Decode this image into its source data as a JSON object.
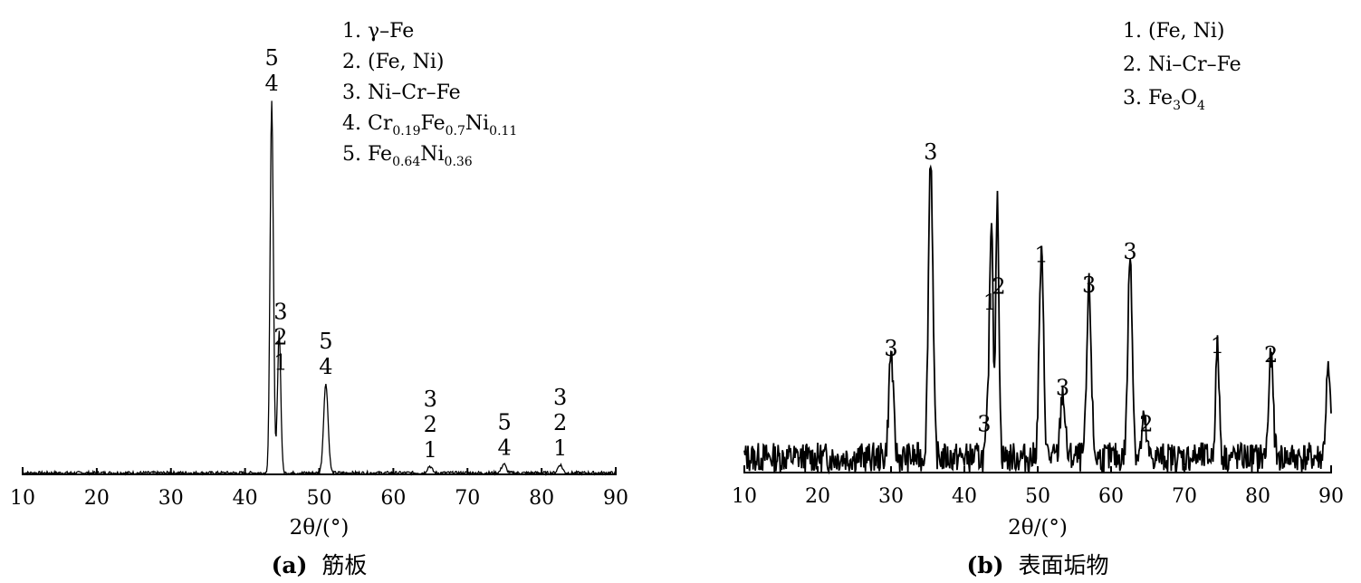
{
  "chart_data": [
    {
      "type": "line",
      "caption_prefix": "(a)",
      "caption_text": "筋板",
      "xlabel": "2θ/(°)",
      "xlim": [
        10,
        90
      ],
      "xticks": [
        10,
        20,
        30,
        40,
        50,
        60,
        70,
        80,
        90
      ],
      "ylim": [
        0,
        100
      ],
      "grid": false,
      "legend_position": "top-center",
      "legend": [
        {
          "num": "1. ",
          "parts": [
            {
              "t": "γ–Fe"
            }
          ]
        },
        {
          "num": "2. ",
          "parts": [
            {
              "t": "(Fe, Ni)"
            }
          ]
        },
        {
          "num": "3. ",
          "parts": [
            {
              "t": "Ni–Cr–Fe"
            }
          ]
        },
        {
          "num": "4. ",
          "parts": [
            {
              "t": "Cr"
            },
            {
              "t": "0.19",
              "sub": true
            },
            {
              "t": "Fe"
            },
            {
              "t": "0.7",
              "sub": true
            },
            {
              "t": "Ni"
            },
            {
              "t": "0.11",
              "sub": true
            }
          ]
        },
        {
          "num": "5. ",
          "parts": [
            {
              "t": "Fe"
            },
            {
              "t": "0.64",
              "sub": true
            },
            {
              "t": "Ni"
            },
            {
              "t": "0.36",
              "sub": true
            }
          ]
        }
      ],
      "peaks": [
        {
          "x": 43.6,
          "y": 100,
          "w": 0.22
        },
        {
          "x": 44.6,
          "y": 38,
          "w": 0.22
        },
        {
          "x": 50.9,
          "y": 24,
          "w": 0.3
        },
        {
          "x": 64.9,
          "y": 1.8,
          "w": 0.3
        },
        {
          "x": 74.9,
          "y": 2.4,
          "w": 0.3
        },
        {
          "x": 82.5,
          "y": 2.2,
          "w": 0.3
        }
      ],
      "baseline_noise": 0.8,
      "annotations": [
        {
          "x": 43.6,
          "labels": [
            "5",
            "4"
          ]
        },
        {
          "x": 44.8,
          "labels": [
            "3",
            "2",
            "1"
          ]
        },
        {
          "x": 50.9,
          "labels": [
            "5",
            "4"
          ]
        },
        {
          "x": 65.0,
          "labels": [
            "3",
            "2",
            "1"
          ]
        },
        {
          "x": 75.0,
          "labels": [
            "5",
            "4"
          ]
        },
        {
          "x": 82.5,
          "labels": [
            "3",
            "2",
            "1"
          ]
        }
      ]
    },
    {
      "type": "line",
      "caption_prefix": "(b)",
      "caption_text": "表面垢物",
      "xlabel": "2θ/(°)",
      "xlim": [
        10,
        90
      ],
      "xticks": [
        10,
        20,
        30,
        40,
        50,
        60,
        70,
        80,
        90
      ],
      "ylim": [
        0,
        100
      ],
      "grid": false,
      "legend_position": "top-right",
      "legend": [
        {
          "num": "1. ",
          "parts": [
            {
              "t": "(Fe, Ni)"
            }
          ]
        },
        {
          "num": "2. ",
          "parts": [
            {
              "t": "Ni–Cr–Fe"
            }
          ]
        },
        {
          "num": "3. ",
          "parts": [
            {
              "t": "Fe"
            },
            {
              "t": "3",
              "sub": true
            },
            {
              "t": "O"
            },
            {
              "t": "4",
              "sub": true
            }
          ]
        }
      ],
      "peaks": [
        {
          "x": 30.0,
          "y": 35,
          "w": 0.3
        },
        {
          "x": 35.4,
          "y": 100,
          "w": 0.3
        },
        {
          "x": 43.3,
          "y": 17,
          "w": 0.25
        },
        {
          "x": 43.7,
          "y": 76,
          "w": 0.22
        },
        {
          "x": 44.5,
          "y": 84,
          "w": 0.22
        },
        {
          "x": 50.5,
          "y": 66,
          "w": 0.3
        },
        {
          "x": 53.4,
          "y": 22,
          "w": 0.3
        },
        {
          "x": 57.0,
          "y": 56,
          "w": 0.3
        },
        {
          "x": 62.6,
          "y": 67,
          "w": 0.3
        },
        {
          "x": 64.5,
          "y": 12,
          "w": 0.3
        },
        {
          "x": 74.5,
          "y": 36,
          "w": 0.25
        },
        {
          "x": 81.8,
          "y": 33,
          "w": 0.3
        },
        {
          "x": 89.6,
          "y": 28,
          "w": 0.3
        }
      ],
      "baseline_noise": 10,
      "annotations": [
        {
          "x": 30.0,
          "labels": [
            "3"
          ]
        },
        {
          "x": 35.4,
          "labels": [
            "3"
          ]
        },
        {
          "x": 42.7,
          "labels": [
            "3"
          ]
        },
        {
          "x": 43.5,
          "labels": [
            "1"
          ]
        },
        {
          "x": 44.7,
          "labels": [
            "2"
          ]
        },
        {
          "x": 50.5,
          "labels": [
            "1"
          ]
        },
        {
          "x": 53.4,
          "labels": [
            "3"
          ]
        },
        {
          "x": 57.0,
          "labels": [
            "3"
          ]
        },
        {
          "x": 62.6,
          "labels": [
            "3"
          ]
        },
        {
          "x": 64.8,
          "labels": [
            "2"
          ]
        },
        {
          "x": 74.5,
          "labels": [
            "1"
          ]
        },
        {
          "x": 81.8,
          "labels": [
            "2"
          ]
        }
      ]
    }
  ]
}
